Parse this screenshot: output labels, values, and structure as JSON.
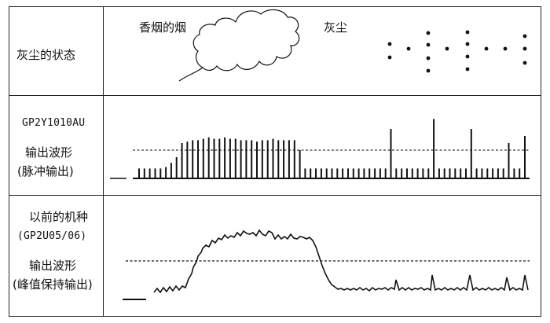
{
  "row1": {
    "left_label": "灰尘的状态",
    "smoke_label": "香烟的烟",
    "dust_label": "灰尘"
  },
  "row2": {
    "model": "GP2Y1010AU",
    "line1": "输出波形",
    "line2": "(脉冲输出)"
  },
  "row3": {
    "line1": "以前的机种",
    "model": "(GP2U05/06)",
    "line2": "输出波形",
    "line3": "(峰值保持输出)"
  },
  "pulse_wave": {
    "description_levels": "relative pulse heights (0=baseline, 1=dashed threshold-ish)",
    "heights": [
      0.35,
      0.35,
      0.35,
      0.35,
      0.35,
      0.4,
      0.55,
      0.75,
      1.25,
      1.3,
      1.35,
      1.35,
      1.4,
      1.45,
      1.4,
      1.4,
      1.45,
      1.4,
      1.4,
      1.35,
      1.35,
      1.35,
      1.3,
      1.35,
      1.35,
      1.4,
      1.35,
      1.35,
      1.35,
      1.35,
      1.0,
      0.35,
      0.35,
      0.35,
      0.35,
      0.35,
      0.35,
      0.35,
      0.35,
      0.35,
      0.35,
      0.35,
      0.35,
      0.35,
      0.35,
      0.35,
      0.35,
      1.75,
      0.35,
      0.35,
      0.35,
      0.35,
      0.35,
      0.35,
      0.35,
      2.1,
      0.35,
      0.35,
      0.35,
      0.35,
      0.35,
      0.35,
      1.75,
      0.35,
      0.35,
      0.35,
      0.35,
      0.35,
      0.35,
      1.25,
      0.35,
      0.35,
      1.5
    ]
  }
}
